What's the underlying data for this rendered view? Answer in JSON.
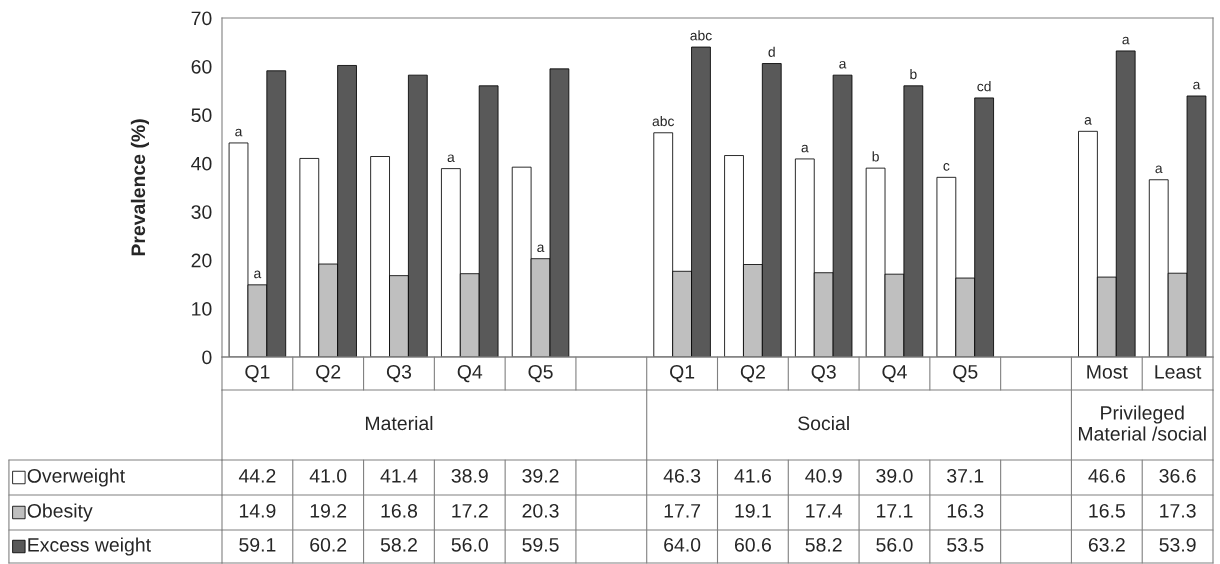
{
  "chart_data": {
    "type": "bar",
    "ylabel": "Prevalence (%)",
    "categories": [
      "Q1",
      "Q2",
      "Q3",
      "Q4",
      "Q5",
      null,
      "Q1",
      "Q2",
      "Q3",
      "Q4",
      "Q5",
      null,
      "Most",
      "Least"
    ],
    "series": [
      {
        "name": "Overweight",
        "color": "#ffffff",
        "values": [
          44.2,
          41.0,
          41.4,
          38.9,
          39.2,
          null,
          46.3,
          41.6,
          40.9,
          39.0,
          37.1,
          null,
          46.6,
          36.6
        ],
        "value_labels": [
          "44.2",
          "41.0",
          "41.4",
          "38.9",
          "39.2",
          null,
          "46.3",
          "41.6",
          "40.9",
          "39.0",
          "37.1",
          null,
          "46.6",
          "36.6"
        ]
      },
      {
        "name": "Obesity",
        "color": "#bfbfbf",
        "values": [
          14.9,
          19.2,
          16.8,
          17.2,
          20.3,
          null,
          17.7,
          19.1,
          17.4,
          17.1,
          16.3,
          null,
          16.5,
          17.3
        ],
        "value_labels": [
          "14.9",
          "19.2",
          "16.8",
          "17.2",
          "20.3",
          null,
          "17.7",
          "19.1",
          "17.4",
          "17.1",
          "16.3",
          null,
          "16.5",
          "17.3"
        ]
      },
      {
        "name": "Excess weight",
        "color": "#595959",
        "values": [
          59.1,
          60.2,
          58.2,
          56.0,
          59.5,
          null,
          64.0,
          60.6,
          58.2,
          56.0,
          53.5,
          null,
          63.2,
          53.9
        ],
        "value_labels": [
          "59.1",
          "60.2",
          "58.2",
          "56.0",
          "59.5",
          null,
          "64.0",
          "60.6",
          "58.2",
          "56.0",
          "53.5",
          null,
          "63.2",
          "53.9"
        ]
      }
    ],
    "annotations": [
      "Material",
      "Social",
      "Privileged Material /social",
      "a",
      "a",
      "a",
      "a",
      "abc",
      "abc",
      "d",
      "a",
      "a",
      "b",
      "b",
      "c",
      "cd",
      "a",
      "a",
      "a",
      "a"
    ],
    "ylim": [
      0,
      70
    ],
    "yticks": [
      0,
      10,
      20,
      30,
      40,
      50,
      60,
      70
    ],
    "legend": "bottom",
    "grid": false
  }
}
